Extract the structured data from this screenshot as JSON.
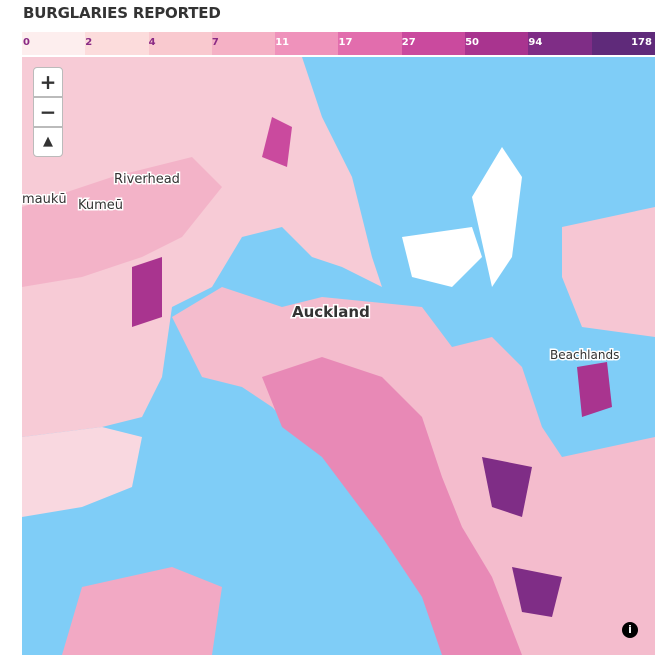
{
  "header": {
    "title": "BURGLARIES REPORTED"
  },
  "legend": {
    "labels": [
      "0",
      "2",
      "4",
      "7",
      "11",
      "17",
      "27",
      "50",
      "94",
      "178"
    ],
    "colors": [
      "#fdeeee",
      "#fcdcdc",
      "#f9c9cf",
      "#f5b1c5",
      "#ef92bb",
      "#e26dad",
      "#ca4a9e",
      "#a9348f",
      "#7f2d86",
      "#5f2a7a"
    ]
  },
  "map": {
    "places": [
      "Riverhead",
      "maukū",
      "Kumeū",
      "Auckland",
      "Beachlands"
    ],
    "controls": {
      "zoom_in": "+",
      "zoom_out": "−",
      "compass": "▲",
      "info": "i"
    }
  }
}
